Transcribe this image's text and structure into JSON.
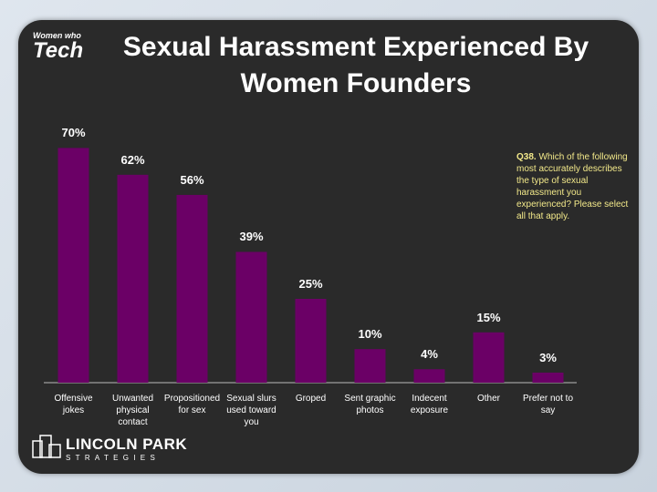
{
  "logo_top": {
    "small": "Women who",
    "big": "Tech"
  },
  "logo_bottom": {
    "name": "LINCOLN PARK",
    "sub": "STRATEGIES"
  },
  "chart_data": {
    "type": "bar",
    "title": "Sexual Harassment Experienced By Women Founders",
    "annotation": {
      "label": "Q38.",
      "text": "Which of the following most accurately describes the type of sexual harassment you experienced? Please select all that apply."
    },
    "categories": [
      "Offensive jokes",
      "Unwanted physical contact",
      "Propositioned for sex",
      "Sexual slurs used toward you",
      "Groped",
      "Sent graphic photos",
      "Indecent exposure",
      "Other",
      "Prefer not to say"
    ],
    "values": [
      70,
      62,
      56,
      39,
      25,
      10,
      4,
      15,
      3
    ],
    "value_labels": [
      "70%",
      "62%",
      "56%",
      "39%",
      "25%",
      "10%",
      "4%",
      "15%",
      "3%"
    ],
    "color": "#6b0066"
  }
}
